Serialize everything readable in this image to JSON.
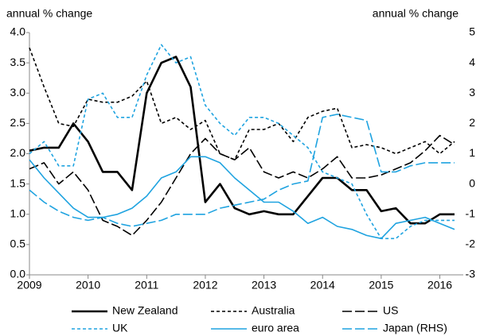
{
  "chart_data": {
    "type": "line",
    "y_label": "annual % change",
    "y2_label": "annual % change",
    "x": [
      2009,
      2009.25,
      2009.5,
      2009.75,
      2010,
      2010.25,
      2010.5,
      2010.75,
      2011,
      2011.25,
      2011.5,
      2011.75,
      2012,
      2012.25,
      2012.5,
      2012.75,
      2013,
      2013.25,
      2013.5,
      2013.75,
      2014,
      2014.25,
      2014.5,
      2014.75,
      2015,
      2015.25,
      2015.5,
      2015.75,
      2016,
      2016.25
    ],
    "xlim": [
      2009,
      2016.4
    ],
    "xticks": [
      2009,
      2010,
      2011,
      2012,
      2013,
      2014,
      2015,
      2016
    ],
    "ylim": [
      0,
      4
    ],
    "yticks": [
      {
        "value": 0,
        "label": "0.0"
      },
      0.5,
      {
        "value": 1,
        "label": "1.0"
      },
      1.5,
      {
        "value": 2,
        "label": "2.0"
      },
      2.5,
      {
        "value": 3,
        "label": "3.0"
      },
      3.5,
      {
        "value": 4,
        "label": "4.0"
      }
    ],
    "y2lim": [
      -3,
      5
    ],
    "y2ticks": [
      -3,
      -2,
      -1,
      0,
      1,
      2,
      3,
      4,
      5
    ],
    "grid": false,
    "legend": "bottom",
    "series": [
      {
        "name": "New Zealand",
        "color": "#000000",
        "dash": "solid",
        "values": [
          2.05,
          2.1,
          2.1,
          2.5,
          2.2,
          1.7,
          1.7,
          1.4,
          3.0,
          3.5,
          3.6,
          3.1,
          1.2,
          1.5,
          1.1,
          1.0,
          1.05,
          1.0,
          1.0,
          1.3,
          1.6,
          1.6,
          1.4,
          1.4,
          1.05,
          1.1,
          0.85,
          0.85,
          1.0,
          1.0
        ]
      },
      {
        "name": "Australia",
        "color": "#000000",
        "dash": "dashed",
        "values": [
          3.75,
          3.1,
          2.5,
          2.45,
          2.9,
          2.85,
          2.85,
          2.95,
          3.2,
          2.5,
          2.6,
          2.4,
          2.55,
          2.0,
          1.9,
          2.4,
          2.4,
          2.5,
          2.2,
          2.6,
          2.7,
          2.75,
          2.1,
          2.15,
          2.1,
          2.0,
          2.1,
          2.2,
          2.0,
          2.2
        ]
      },
      {
        "name": "US",
        "color": "#000000",
        "dash": "long-dash",
        "values": [
          1.75,
          1.85,
          1.5,
          1.7,
          1.4,
          0.9,
          0.8,
          0.65,
          0.9,
          1.2,
          1.6,
          2.0,
          2.25,
          2.0,
          1.9,
          2.1,
          1.7,
          1.6,
          1.7,
          1.6,
          1.75,
          1.95,
          1.6,
          1.6,
          1.65,
          1.75,
          1.85,
          2.05,
          2.3,
          2.15
        ]
      },
      {
        "name": "UK",
        "color": "#1fa3e0",
        "dash": "dashed",
        "values": [
          2.0,
          2.2,
          1.8,
          1.8,
          2.9,
          3.0,
          2.6,
          2.6,
          3.3,
          3.8,
          3.5,
          3.6,
          2.8,
          2.5,
          2.3,
          2.6,
          2.6,
          2.5,
          2.3,
          2.1,
          1.7,
          1.6,
          1.5,
          1.0,
          0.6,
          0.6,
          0.8,
          0.9,
          0.9,
          0.9
        ]
      },
      {
        "name": "euro area",
        "color": "#1fa3e0",
        "dash": "solid",
        "values": [
          1.9,
          1.6,
          1.35,
          1.1,
          0.95,
          0.95,
          1.0,
          1.1,
          1.3,
          1.6,
          1.7,
          1.95,
          1.95,
          1.85,
          1.6,
          1.4,
          1.2,
          1.2,
          1.05,
          0.85,
          0.95,
          0.8,
          0.75,
          0.65,
          0.6,
          0.85,
          0.9,
          0.95,
          0.85,
          0.75
        ]
      },
      {
        "name": "Japan (RHS)",
        "color": "#1fa3e0",
        "dash": "long-dash",
        "axis": "y2",
        "values": [
          -0.2,
          -0.6,
          -0.9,
          -1.1,
          -1.2,
          -1.1,
          -1.3,
          -1.4,
          -1.3,
          -1.2,
          -1.0,
          -1.0,
          -1.0,
          -0.8,
          -0.7,
          -0.6,
          -0.5,
          -0.2,
          0.0,
          0.1,
          2.2,
          2.3,
          2.2,
          2.1,
          0.4,
          0.4,
          0.6,
          0.7,
          0.7,
          0.7
        ]
      }
    ]
  }
}
